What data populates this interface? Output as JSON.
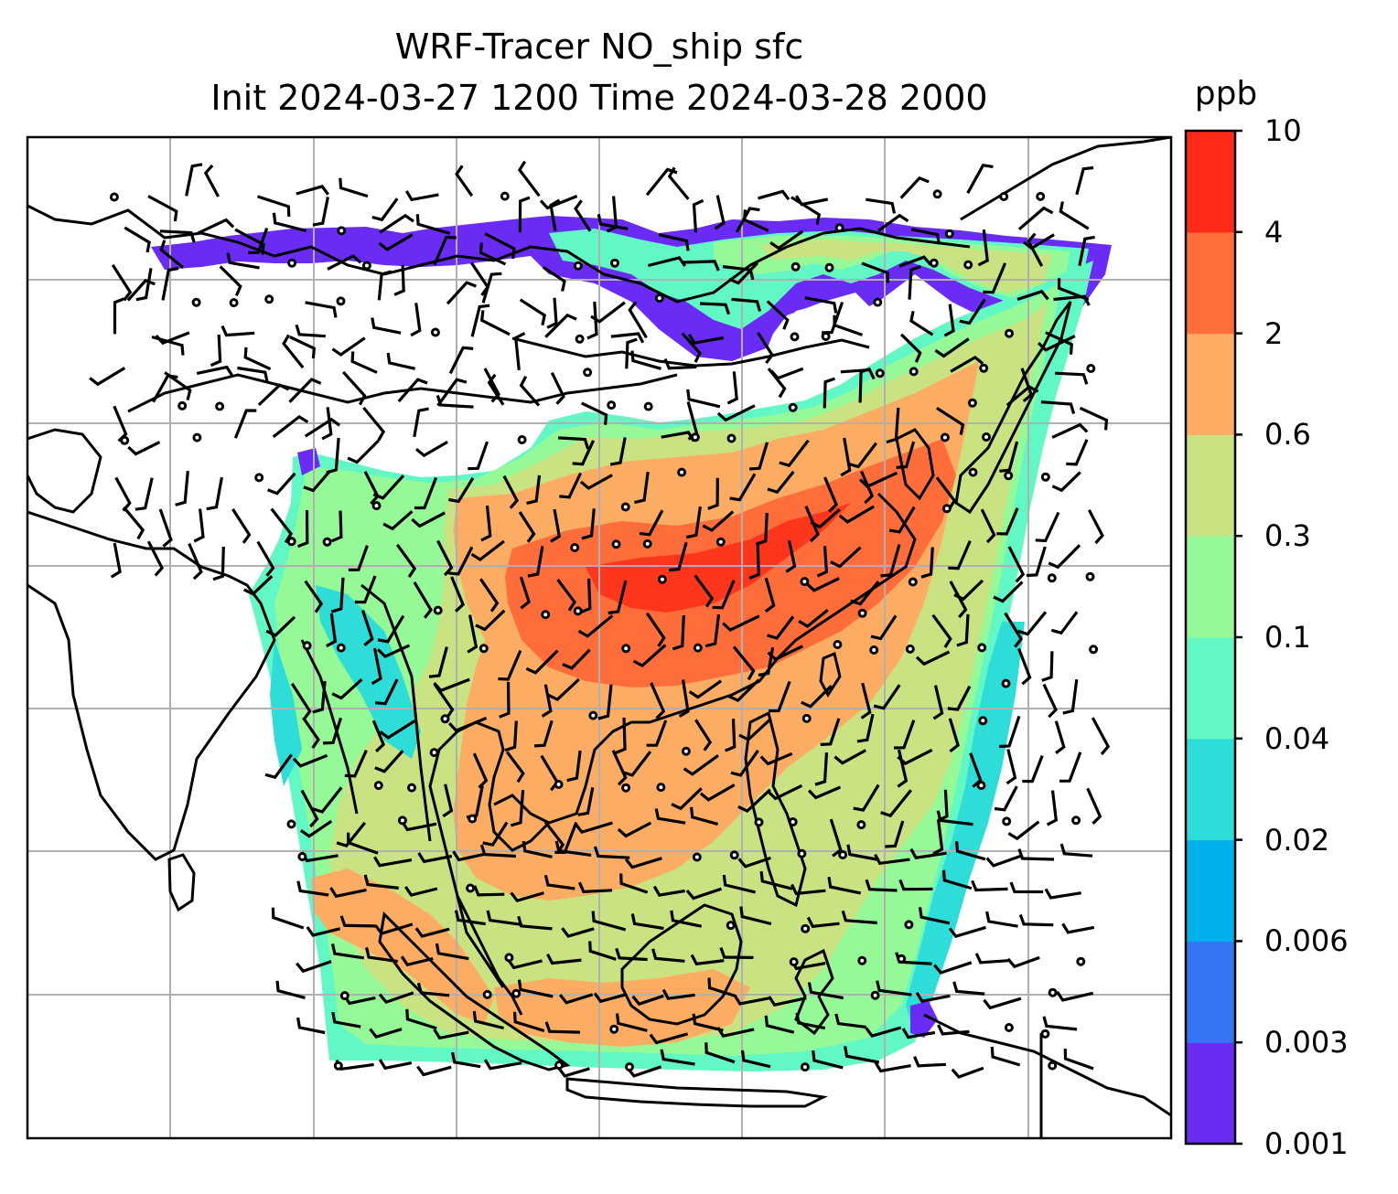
{
  "title_line1": "WRF-Tracer NO_ship sfc",
  "title_line2": "Init 2024-03-27 1200 Time 2024-03-28 2000",
  "colorbar": {
    "unit": "ppb",
    "ticks": [
      "0.001",
      "0.003",
      "0.006",
      "0.02",
      "0.04",
      "0.1",
      "0.3",
      "0.6",
      "2",
      "4",
      "10"
    ],
    "colors": [
      "#6a2cf5",
      "#3375f5",
      "#00b0ea",
      "#2edcd8",
      "#62f8c6",
      "#94f996",
      "#c9e383",
      "#fdad63",
      "#ff6d3a",
      "#ff2b18"
    ]
  },
  "map": {
    "domain": "WRF domain over South / Southeast / East Asia",
    "field": "NO from ship emissions at surface",
    "overlay": "wind barbs and calm circles",
    "gridlines": true,
    "features": [
      "coastlines",
      "country borders"
    ]
  }
}
